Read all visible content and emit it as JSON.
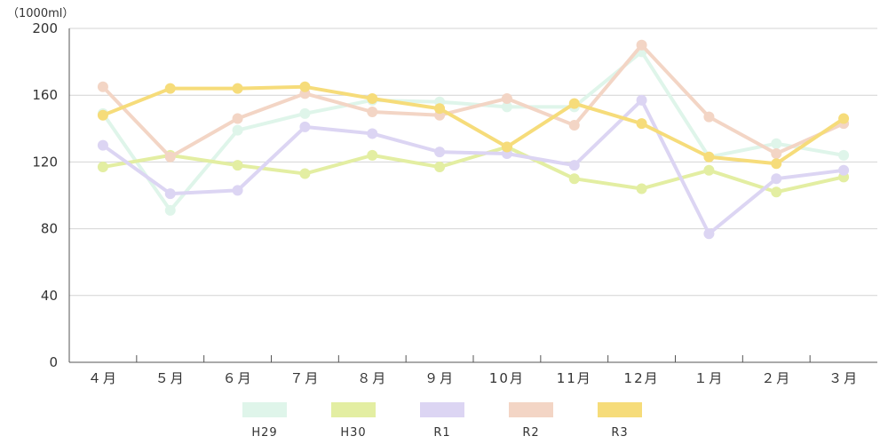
{
  "chart_data": {
    "type": "line",
    "title": "",
    "unit_label": "（1000ml）",
    "xlabel": "",
    "ylabel": "",
    "ylim": [
      0,
      200
    ],
    "yticks": [
      0,
      40,
      80,
      120,
      160,
      200
    ],
    "grid": true,
    "legend_position": "bottom",
    "categories": [
      "４月",
      "５月",
      "６月",
      "７月",
      "８月",
      "９月",
      "10月",
      "11月",
      "12月",
      "１月",
      "２月",
      "３月"
    ],
    "series": [
      {
        "name": "H29",
        "color": "#dff5ea",
        "values": [
          149,
          91,
          139,
          149,
          157,
          156,
          153,
          153,
          186,
          123,
          131,
          124
        ]
      },
      {
        "name": "H30",
        "color": "#e3eea2",
        "values": [
          117,
          124,
          118,
          113,
          124,
          117,
          129,
          110,
          104,
          115,
          102,
          111
        ]
      },
      {
        "name": "R1",
        "color": "#dcd5f3",
        "values": [
          130,
          101,
          103,
          141,
          137,
          126,
          125,
          118,
          157,
          77,
          110,
          115
        ]
      },
      {
        "name": "R2",
        "color": "#f3d5c5",
        "values": [
          165,
          123,
          146,
          161,
          150,
          148,
          158,
          142,
          190,
          147,
          125,
          143
        ]
      },
      {
        "name": "R3",
        "color": "#f6dc7a",
        "values": [
          148,
          164,
          164,
          165,
          158,
          152,
          129,
          155,
          143,
          123,
          119,
          146
        ]
      }
    ]
  }
}
